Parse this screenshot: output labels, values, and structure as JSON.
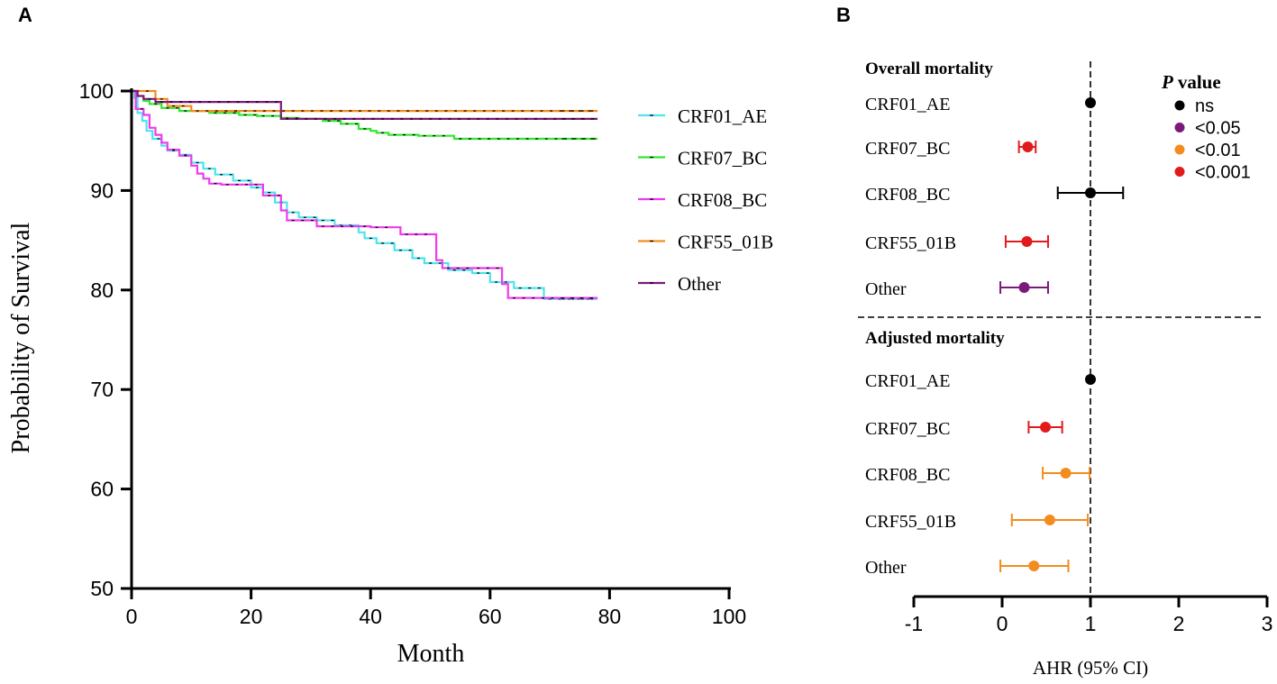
{
  "chart_data": [
    {
      "panel_label": "A",
      "type": "line",
      "subtype": "kaplan-meier",
      "title": "",
      "xlabel": "Month",
      "ylabel": "Probability of Survival",
      "xlim": [
        0,
        100
      ],
      "ylim": [
        50,
        100
      ],
      "xticks": [
        0,
        20,
        40,
        60,
        80,
        100
      ],
      "yticks": [
        50,
        60,
        70,
        80,
        90,
        100
      ],
      "legend_position": "right",
      "series": [
        {
          "name": "CRF01_AE",
          "color": "#4de3ef",
          "steps": [
            [
              0,
              100
            ],
            [
              0.5,
              99.3
            ],
            [
              1,
              97.8
            ],
            [
              1.8,
              97.0
            ],
            [
              2.5,
              96.0
            ],
            [
              3.5,
              95.2
            ],
            [
              5,
              94.5
            ],
            [
              6,
              94.0
            ],
            [
              8,
              93.6
            ],
            [
              10,
              92.8
            ],
            [
              12,
              92.2
            ],
            [
              14,
              91.6
            ],
            [
              17,
              91.0
            ],
            [
              20,
              90.3
            ],
            [
              22,
              89.8
            ],
            [
              24,
              88.8
            ],
            [
              26,
              87.8
            ],
            [
              28,
              87.3
            ],
            [
              31,
              87.0
            ],
            [
              34,
              86.5
            ],
            [
              38,
              85.8
            ],
            [
              39,
              85.2
            ],
            [
              41,
              84.7
            ],
            [
              44,
              84.0
            ],
            [
              47,
              83.2
            ],
            [
              49,
              82.7
            ],
            [
              53,
              82.0
            ],
            [
              57,
              81.7
            ],
            [
              60,
              80.8
            ],
            [
              64,
              80.2
            ],
            [
              69,
              79.1
            ],
            [
              78,
              79.1
            ]
          ]
        },
        {
          "name": "CRF07_BC",
          "color": "#33e533",
          "steps": [
            [
              0,
              100
            ],
            [
              1,
              99.5
            ],
            [
              2,
              99.0
            ],
            [
              3,
              98.7
            ],
            [
              5,
              98.3
            ],
            [
              8,
              98.0
            ],
            [
              13,
              97.8
            ],
            [
              18,
              97.6
            ],
            [
              21,
              97.5
            ],
            [
              25,
              97.3
            ],
            [
              28,
              97.2
            ],
            [
              32,
              97.0
            ],
            [
              35,
              96.7
            ],
            [
              38,
              96.2
            ],
            [
              40,
              96.0
            ],
            [
              41,
              95.8
            ],
            [
              43,
              95.6
            ],
            [
              48,
              95.5
            ],
            [
              54,
              95.2
            ],
            [
              78,
              95.2
            ]
          ]
        },
        {
          "name": "CRF08_BC",
          "color": "#ee3bee",
          "steps": [
            [
              0,
              100
            ],
            [
              0.7,
              98.2
            ],
            [
              2,
              97.6
            ],
            [
              3,
              96.3
            ],
            [
              4,
              95.6
            ],
            [
              5,
              94.8
            ],
            [
              6,
              94.1
            ],
            [
              8,
              93.5
            ],
            [
              10,
              92.5
            ],
            [
              11,
              91.7
            ],
            [
              12,
              91.2
            ],
            [
              13,
              90.7
            ],
            [
              15,
              90.6
            ],
            [
              22,
              89.5
            ],
            [
              25,
              88.0
            ],
            [
              26,
              87.0
            ],
            [
              31,
              86.4
            ],
            [
              38,
              86.4
            ],
            [
              40,
              86.3
            ],
            [
              44,
              86.3
            ],
            [
              45,
              85.6
            ],
            [
              51,
              83.0
            ],
            [
              52,
              82.2
            ],
            [
              57,
              82.2
            ],
            [
              62,
              80.6
            ],
            [
              63,
              79.2
            ],
            [
              78,
              79.2
            ]
          ]
        },
        {
          "name": "CRF55_01B",
          "color": "#f28c1e",
          "steps": [
            [
              0,
              100
            ],
            [
              4,
              99.2
            ],
            [
              6,
              98.5
            ],
            [
              10,
              98.0
            ],
            [
              78,
              98.0
            ]
          ]
        },
        {
          "name": "Other",
          "color": "#7b1a7b",
          "steps": [
            [
              0,
              100
            ],
            [
              1,
              99.5
            ],
            [
              2,
              99.2
            ],
            [
              4,
              98.9
            ],
            [
              25,
              97.2
            ],
            [
              78,
              97.2
            ]
          ]
        }
      ]
    },
    {
      "panel_label": "B",
      "type": "scatter",
      "subtype": "forest-plot",
      "xlabel": "AHR (95% CI)",
      "xlim": [
        -1,
        3
      ],
      "xticks": [
        -1,
        0,
        1,
        2,
        3
      ],
      "reference_line": 1,
      "legend_title_italic": "P",
      "legend_title_rest": "value",
      "legend_position": "top-right",
      "legend": [
        {
          "label": "ns",
          "color": "#000000"
        },
        {
          "label": "<0.05",
          "color": "#7b1a7b"
        },
        {
          "label": "<0.01",
          "color": "#f28c1e"
        },
        {
          "label": "<0.001",
          "color": "#e31a1c"
        }
      ],
      "groups": [
        {
          "title": "Overall  mortality",
          "rows": [
            {
              "label": "CRF01_AE",
              "estimate": 1.0,
              "lower": 1.0,
              "upper": 1.0,
              "p_class": "ns"
            },
            {
              "label": "CRF07_BC",
              "estimate": 0.29,
              "lower": 0.19,
              "upper": 0.38,
              "p_class": "<0.001"
            },
            {
              "label": "CRF08_BC",
              "estimate": 1.0,
              "lower": 0.63,
              "upper": 1.37,
              "p_class": "ns"
            },
            {
              "label": "CRF55_01B",
              "estimate": 0.28,
              "lower": 0.04,
              "upper": 0.52,
              "p_class": "<0.001"
            },
            {
              "label": "Other",
              "estimate": 0.25,
              "lower": -0.02,
              "upper": 0.52,
              "p_class": "<0.05"
            }
          ]
        },
        {
          "title": "Adjusted  mortality",
          "rows": [
            {
              "label": "CRF01_AE",
              "estimate": 1.0,
              "lower": 1.0,
              "upper": 1.0,
              "p_class": "ns"
            },
            {
              "label": "CRF07_BC",
              "estimate": 0.49,
              "lower": 0.3,
              "upper": 0.68,
              "p_class": "<0.001"
            },
            {
              "label": "CRF08_BC",
              "estimate": 0.72,
              "lower": 0.46,
              "upper": 0.99,
              "p_class": "<0.01"
            },
            {
              "label": "CRF55_01B",
              "estimate": 0.54,
              "lower": 0.11,
              "upper": 0.97,
              "p_class": "<0.01"
            },
            {
              "label": "Other",
              "estimate": 0.36,
              "lower": -0.02,
              "upper": 0.75,
              "p_class": "<0.01"
            }
          ]
        }
      ]
    }
  ]
}
